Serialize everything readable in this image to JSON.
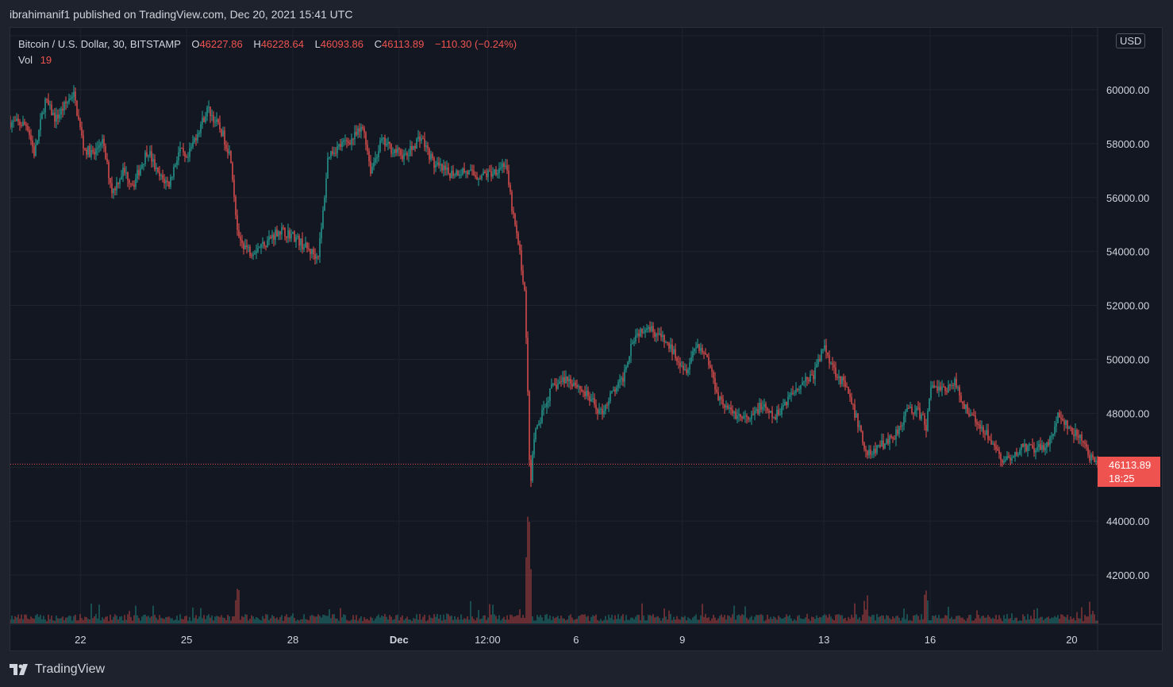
{
  "publish_line": "ibrahimanif1 published on TradingView.com, Dec 20, 2021 15:41 UTC",
  "legend": {
    "symbol": "Bitcoin / U.S. Dollar, 30, BITSTAMP",
    "open_label": "O",
    "open": "46227.86",
    "high_label": "H",
    "high": "46228.64",
    "low_label": "L",
    "low": "46093.86",
    "close_label": "C",
    "close": "46113.89",
    "change": "−110.30 (−0.24%)",
    "vol_label": "Vol",
    "vol": "19"
  },
  "currency": "USD",
  "price_tag": {
    "price": "46113.89",
    "countdown": "18:25"
  },
  "footer_logo": "TradingView",
  "colors": {
    "background": "#131722",
    "grid": "#1f232e",
    "up": "#26a69a",
    "down": "#ef5350",
    "text": "#d1d4dc"
  },
  "chart_data": {
    "type": "candlestick",
    "interval": "30",
    "exchange": "BITSTAMP",
    "currency": "USD",
    "y_range": [
      40000,
      62000
    ],
    "y_ticks": [
      "42000.00",
      "44000.00",
      "46000.00",
      "48000.00",
      "50000.00",
      "52000.00",
      "54000.00",
      "56000.00",
      "58000.00",
      "60000.00"
    ],
    "x_ticks": [
      {
        "label": "22",
        "day": 1.0
      },
      {
        "label": "25",
        "day": 4.0
      },
      {
        "label": "28",
        "day": 7.0
      },
      {
        "label": "Dec",
        "day": 10.0,
        "bold": true
      },
      {
        "label": "12:00",
        "day": 12.5
      },
      {
        "label": "6",
        "day": 15.0
      },
      {
        "label": "9",
        "day": 18.0
      },
      {
        "label": "13",
        "day": 22.0
      },
      {
        "label": "16",
        "day": 25.0
      },
      {
        "label": "20",
        "day": 29.0
      }
    ],
    "x_range_days": [
      -0.98,
      29.73
    ],
    "last_price": 46113.89,
    "price_path": [
      [
        -0.98,
        58800
      ],
      [
        -0.5,
        58700
      ],
      [
        -0.3,
        57600
      ],
      [
        0.0,
        59600
      ],
      [
        0.3,
        58900
      ],
      [
        0.8,
        59900
      ],
      [
        1.1,
        57800
      ],
      [
        1.4,
        57600
      ],
      [
        1.6,
        58200
      ],
      [
        1.9,
        56200
      ],
      [
        2.2,
        57000
      ],
      [
        2.5,
        56500
      ],
      [
        2.9,
        57800
      ],
      [
        3.2,
        56800
      ],
      [
        3.5,
        56500
      ],
      [
        3.8,
        57800
      ],
      [
        4.0,
        57300
      ],
      [
        4.2,
        58100
      ],
      [
        4.6,
        59300
      ],
      [
        5.0,
        58400
      ],
      [
        5.25,
        57500
      ],
      [
        5.45,
        54500
      ],
      [
        5.8,
        54000
      ],
      [
        6.2,
        54300
      ],
      [
        6.6,
        54800
      ],
      [
        7.0,
        54600
      ],
      [
        7.4,
        54100
      ],
      [
        7.7,
        53800
      ],
      [
        7.8,
        54700
      ],
      [
        8.0,
        57600
      ],
      [
        8.3,
        57900
      ],
      [
        8.7,
        58200
      ],
      [
        9.0,
        58600
      ],
      [
        9.2,
        57000
      ],
      [
        9.5,
        58100
      ],
      [
        9.8,
        57800
      ],
      [
        10.2,
        57500
      ],
      [
        10.6,
        58300
      ],
      [
        11.0,
        57200
      ],
      [
        11.4,
        56900
      ],
      [
        11.8,
        57000
      ],
      [
        12.2,
        56800
      ],
      [
        12.6,
        56900
      ],
      [
        13.0,
        57300
      ],
      [
        13.2,
        55500
      ],
      [
        13.4,
        54000
      ],
      [
        13.55,
        52500
      ],
      [
        13.65,
        48000
      ],
      [
        13.7,
        45000
      ],
      [
        13.8,
        47000
      ],
      [
        14.0,
        47800
      ],
      [
        14.3,
        48900
      ],
      [
        14.7,
        49300
      ],
      [
        15.0,
        49100
      ],
      [
        15.4,
        48500
      ],
      [
        15.7,
        48000
      ],
      [
        16.0,
        48700
      ],
      [
        16.3,
        49200
      ],
      [
        16.6,
        50800
      ],
      [
        17.0,
        51300
      ],
      [
        17.4,
        50800
      ],
      [
        17.8,
        50200
      ],
      [
        18.1,
        49600
      ],
      [
        18.4,
        50600
      ],
      [
        18.7,
        50100
      ],
      [
        19.0,
        48700
      ],
      [
        19.3,
        48100
      ],
      [
        19.6,
        47900
      ],
      [
        19.9,
        47700
      ],
      [
        20.2,
        48300
      ],
      [
        20.6,
        47800
      ],
      [
        21.0,
        48600
      ],
      [
        21.4,
        49200
      ],
      [
        21.7,
        49400
      ],
      [
        22.0,
        50500
      ],
      [
        22.3,
        49600
      ],
      [
        22.6,
        49000
      ],
      [
        23.0,
        47500
      ],
      [
        23.2,
        46400
      ],
      [
        23.6,
        46800
      ],
      [
        24.0,
        47200
      ],
      [
        24.4,
        48200
      ],
      [
        24.7,
        48000
      ],
      [
        24.9,
        47500
      ],
      [
        25.0,
        49000
      ],
      [
        25.4,
        48900
      ],
      [
        25.7,
        49100
      ],
      [
        26.0,
        48200
      ],
      [
        26.3,
        47700
      ],
      [
        26.6,
        47300
      ],
      [
        27.0,
        46300
      ],
      [
        27.3,
        46200
      ],
      [
        27.6,
        46800
      ],
      [
        28.0,
        46600
      ],
      [
        28.4,
        47000
      ],
      [
        28.6,
        47900
      ],
      [
        29.0,
        47300
      ],
      [
        29.3,
        47000
      ],
      [
        29.55,
        46300
      ],
      [
        29.73,
        46113.89
      ]
    ],
    "volume_spikes": [
      {
        "day": 13.65,
        "volume": "high"
      },
      {
        "day": 13.7,
        "volume": "high"
      },
      {
        "day": 5.45,
        "volume": "medium"
      },
      {
        "day": 24.9,
        "volume": "medium"
      },
      {
        "day": 23.2,
        "volume": "medium"
      }
    ]
  }
}
